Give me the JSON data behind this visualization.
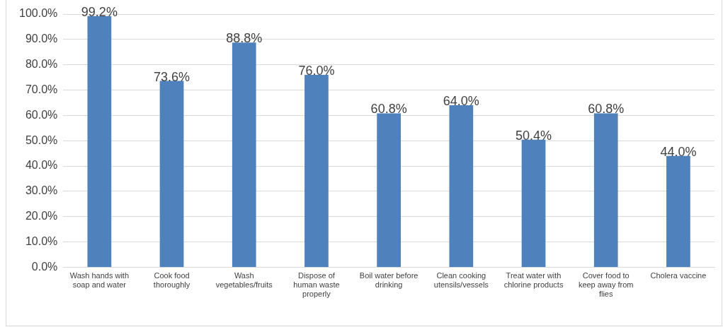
{
  "chart_data": {
    "type": "bar",
    "categories": [
      "Wash hands with soap and water",
      "Cook food thoroughly",
      "Wash vegetables/fruits",
      "Dispose of human waste properly",
      "Boil water before drinking",
      "Clean cooking utensils/vessels",
      "Treat water with chlorine products",
      "Cover food to keep away from flies",
      "Cholera vaccine"
    ],
    "values": [
      99.2,
      73.6,
      88.8,
      76.0,
      60.8,
      64.0,
      50.4,
      60.8,
      44.0
    ],
    "value_labels": [
      "99.2%",
      "73.6%",
      "88.8%",
      "76.0%",
      "60.8%",
      "64.0%",
      "50.4%",
      "60.8%",
      "44.0%"
    ],
    "color": "#4f81bd",
    "ylim": [
      0,
      100
    ],
    "yticks": [
      {
        "value": 0,
        "label": "0.0%"
      },
      {
        "value": 10,
        "label": "10.0%"
      },
      {
        "value": 20,
        "label": "20.0%"
      },
      {
        "value": 30,
        "label": "30.0%"
      },
      {
        "value": 40,
        "label": "40.0%"
      },
      {
        "value": 50,
        "label": "50.0%"
      },
      {
        "value": 60,
        "label": "60.0%"
      },
      {
        "value": 70,
        "label": "70.0%"
      },
      {
        "value": 80,
        "label": "80.0%"
      },
      {
        "value": 90,
        "label": "90.0%"
      },
      {
        "value": 100,
        "label": "100.0%"
      }
    ],
    "grid": "y",
    "legend": false
  }
}
